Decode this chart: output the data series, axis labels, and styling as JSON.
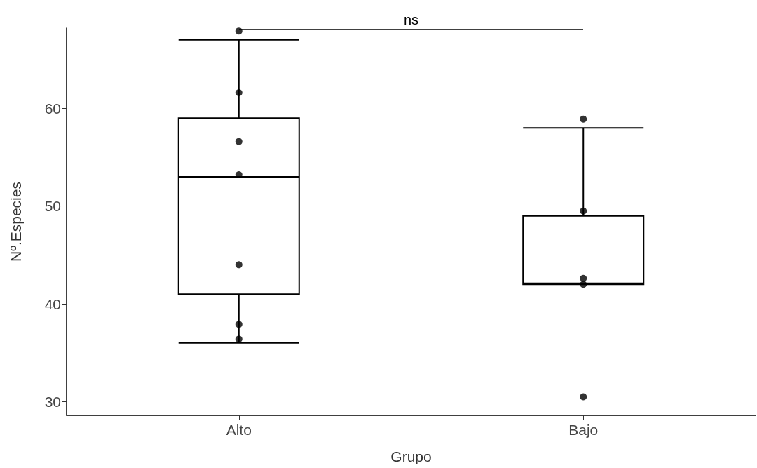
{
  "chart_data": {
    "type": "box",
    "xlabel": "Grupo",
    "ylabel": "Nº.Especies",
    "categories": [
      "Alto",
      "Bajo"
    ],
    "boxes": [
      {
        "low": 36,
        "q1": 41,
        "median": 53,
        "q3": 59,
        "high": 67
      },
      {
        "low": 42,
        "q1": 42,
        "median": 42.1,
        "q3": 49,
        "high": 58
      }
    ],
    "series": [
      {
        "type": "scatter",
        "color": "#000000",
        "x": [
          "Alto",
          "Alto",
          "Alto",
          "Alto",
          "Alto",
          "Alto",
          "Alto",
          "Bajo",
          "Bajo",
          "Bajo",
          "Bajo",
          "Bajo"
        ],
        "values": [
          67.9,
          61.6,
          56.6,
          53.2,
          44,
          37.9,
          36.4,
          58.9,
          49.5,
          42.6,
          42,
          30.5
        ]
      }
    ],
    "ylim": [
      28.6,
      68.2
    ],
    "yticks": [
      30,
      40,
      50,
      60
    ],
    "grid": false,
    "marker": "circle",
    "annotations": [
      "ns"
    ]
  }
}
